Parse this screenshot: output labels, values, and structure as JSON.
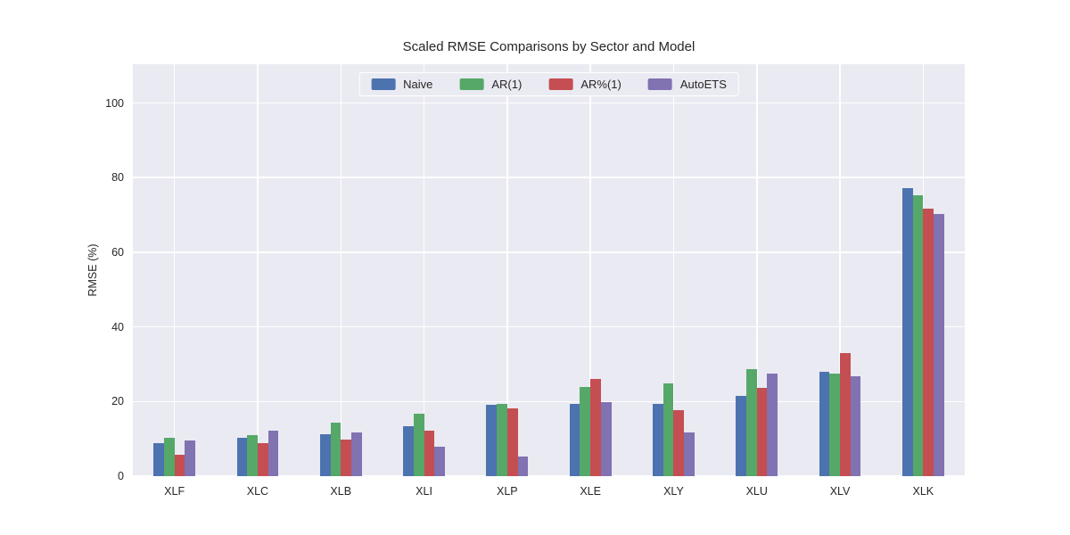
{
  "chart_data": {
    "type": "bar",
    "title": "Scaled RMSE Comparisons by Sector and Model",
    "xlabel": "",
    "ylabel": "RMSE (%)",
    "categories": [
      "XLF",
      "XLC",
      "XLB",
      "XLI",
      "XLP",
      "XLE",
      "XLY",
      "XLU",
      "XLV",
      "XLK"
    ],
    "series": [
      {
        "name": "Naive",
        "color": "#4C72B0",
        "values": [
          8.8,
          10.2,
          11.3,
          13.4,
          19.0,
          19.4,
          19.4,
          21.5,
          28.0,
          77.3
        ]
      },
      {
        "name": "AR(1)",
        "color": "#55A868",
        "values": [
          10.2,
          11.0,
          14.4,
          16.8,
          19.3,
          23.9,
          24.8,
          28.7,
          27.6,
          75.2
        ]
      },
      {
        "name": "AR%(1)",
        "color": "#C44E52",
        "values": [
          5.8,
          8.8,
          9.9,
          12.2,
          18.2,
          26.0,
          17.7,
          23.6,
          33.0,
          71.7
        ]
      },
      {
        "name": "AutoETS",
        "color": "#8172B2",
        "values": [
          9.6,
          12.1,
          11.6,
          7.9,
          5.3,
          19.9,
          11.7,
          27.5,
          26.8,
          70.3
        ]
      }
    ],
    "yticks": [
      0,
      20,
      40,
      60,
      80,
      100
    ],
    "ylim": [
      0,
      110.4
    ],
    "grid": true,
    "legend_position": "top-center",
    "colors": {
      "plot_background": "#EAEAF2",
      "figure_background": "#FFFFFF",
      "gridline": "#FFFFFF",
      "text": "#262626"
    }
  }
}
